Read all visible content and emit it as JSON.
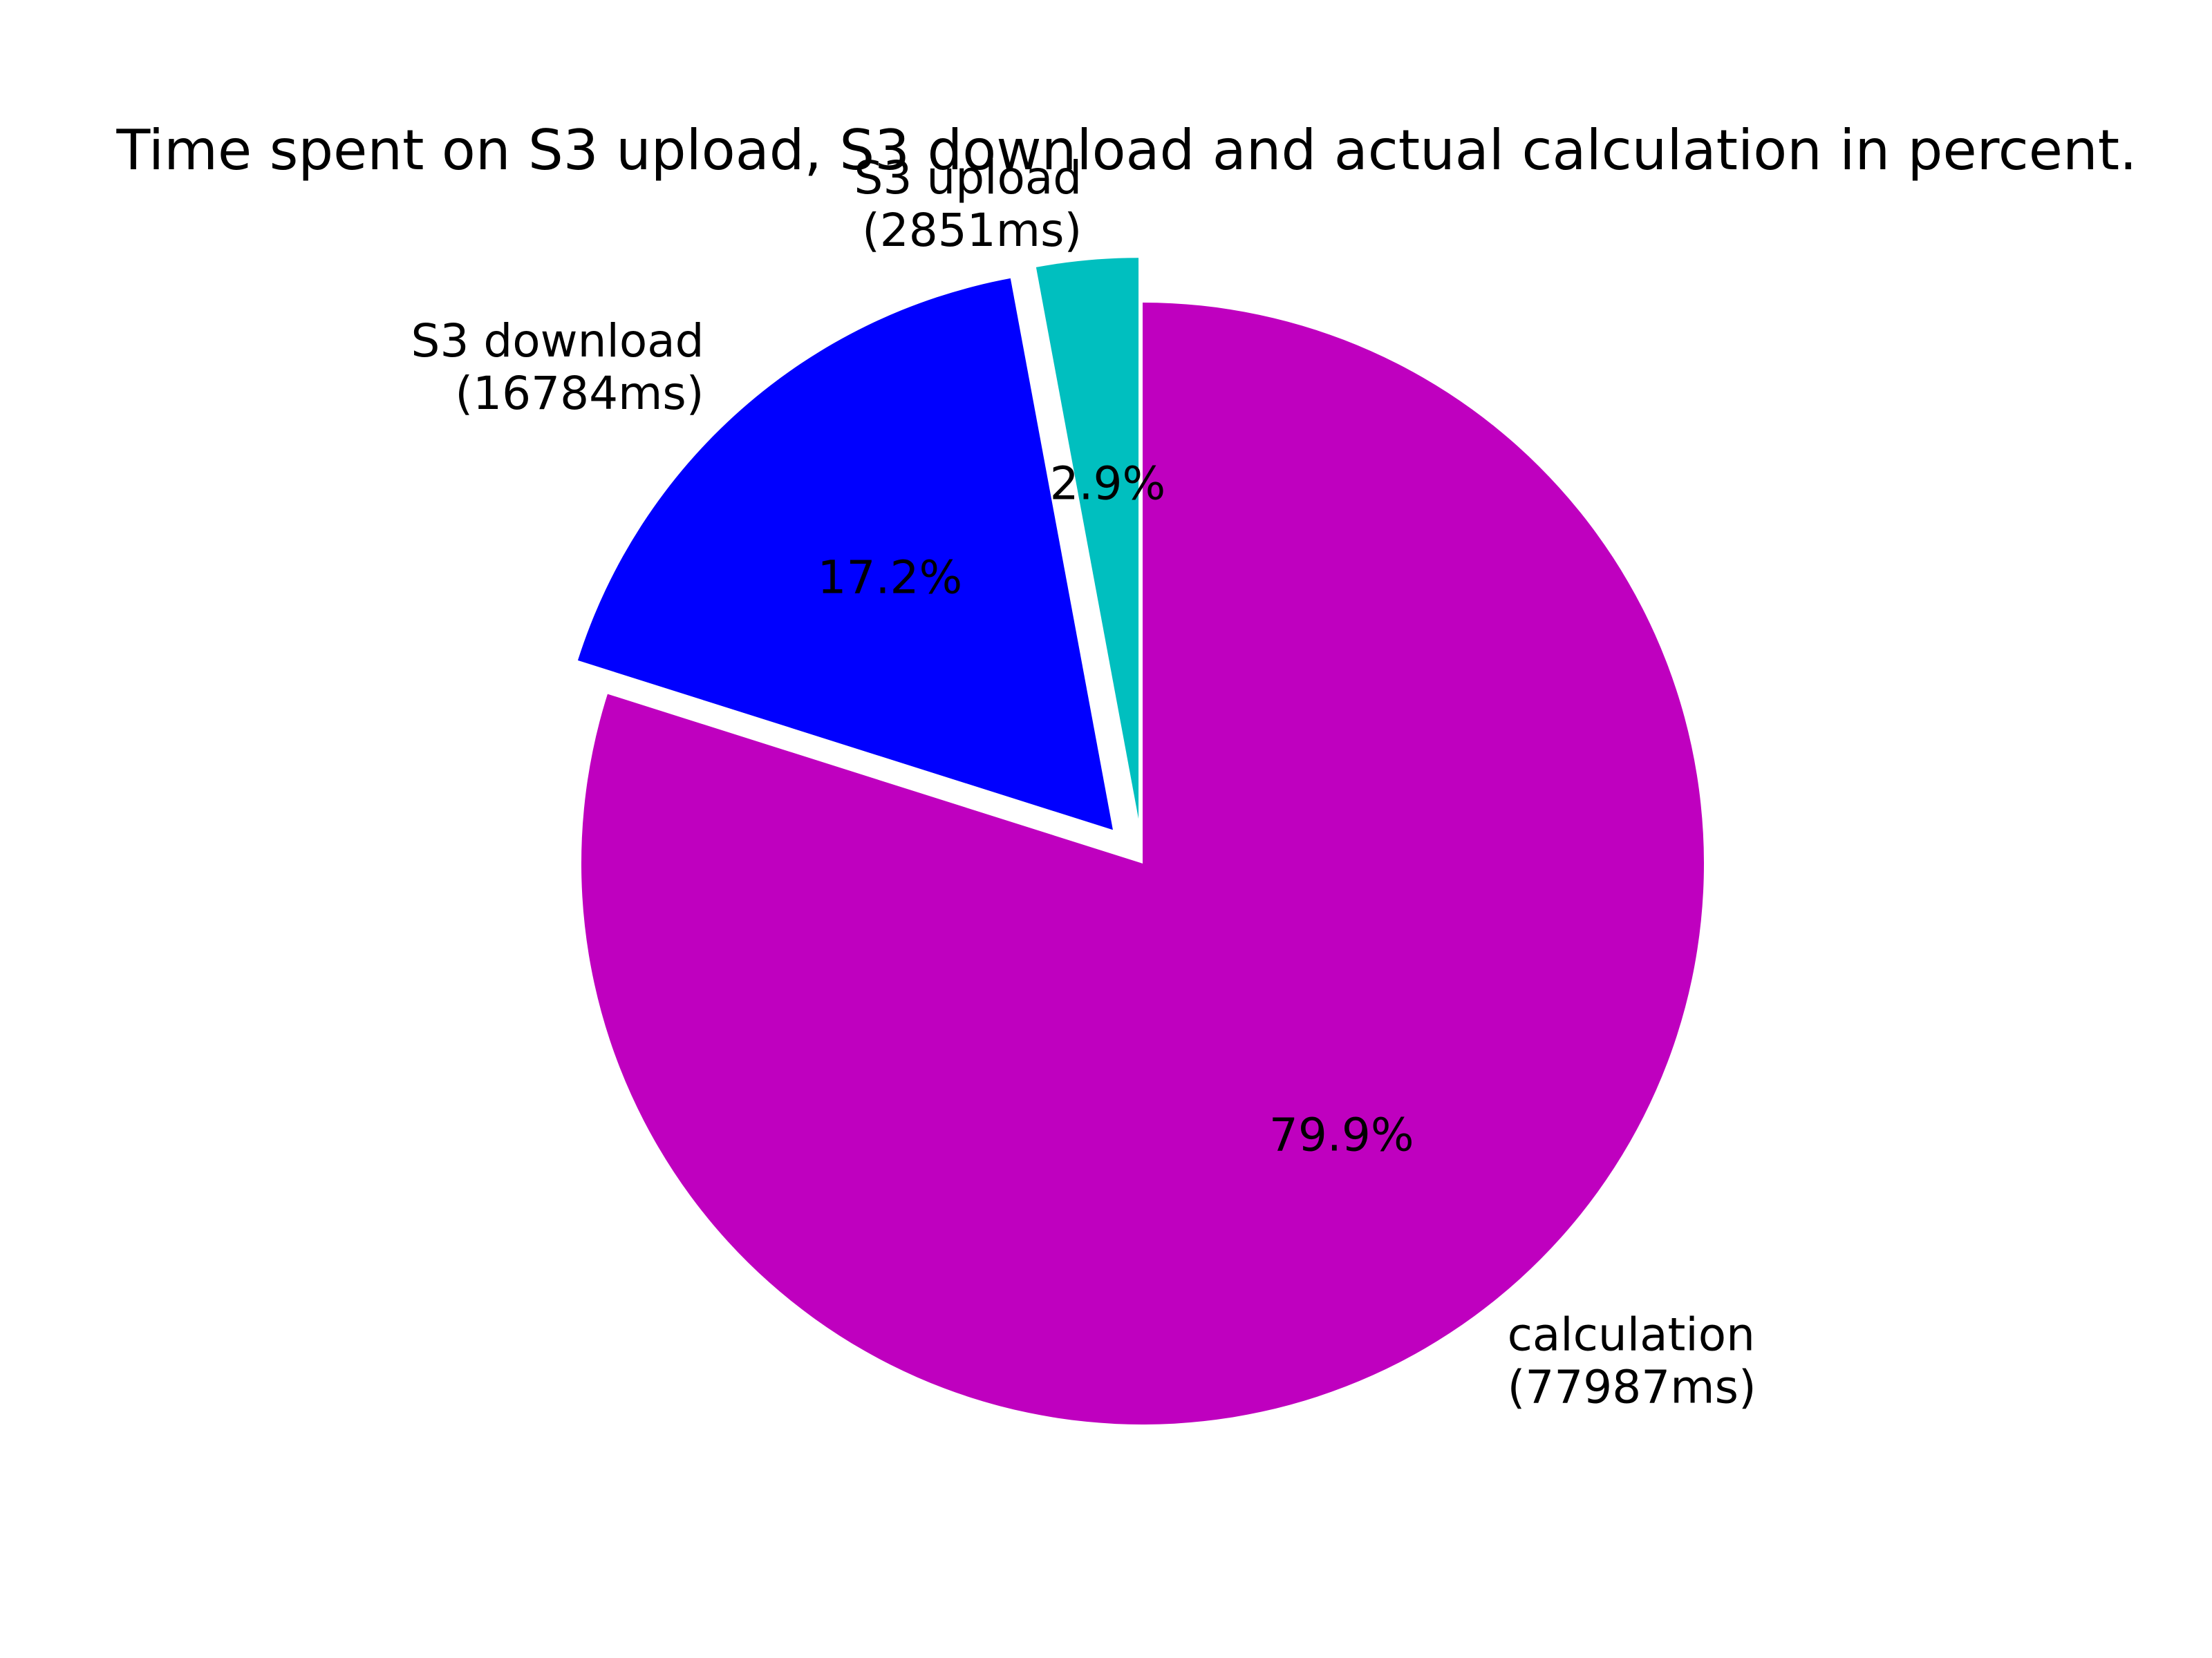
{
  "chart_data": {
    "type": "pie",
    "title": "Time spent on S3 upload, S3 download and actual calculation in percent.",
    "start_angle_deg": 90,
    "direction": "counterclockwise",
    "slices": [
      {
        "name": "S3 upload",
        "value_label": "(2851ms)",
        "value": 2851,
        "percent_label": "2.9%",
        "color": "#00bfbf",
        "exploded": true
      },
      {
        "name": "S3 download",
        "value_label": "(16784ms)",
        "value": 16784,
        "percent_label": "17.2%",
        "color": "#0000ff",
        "exploded": true
      },
      {
        "name": "calculation",
        "value_label": "(77987ms)",
        "value": 77987,
        "percent_label": "79.9%",
        "color": "#bf00bf",
        "exploded": false
      }
    ]
  }
}
